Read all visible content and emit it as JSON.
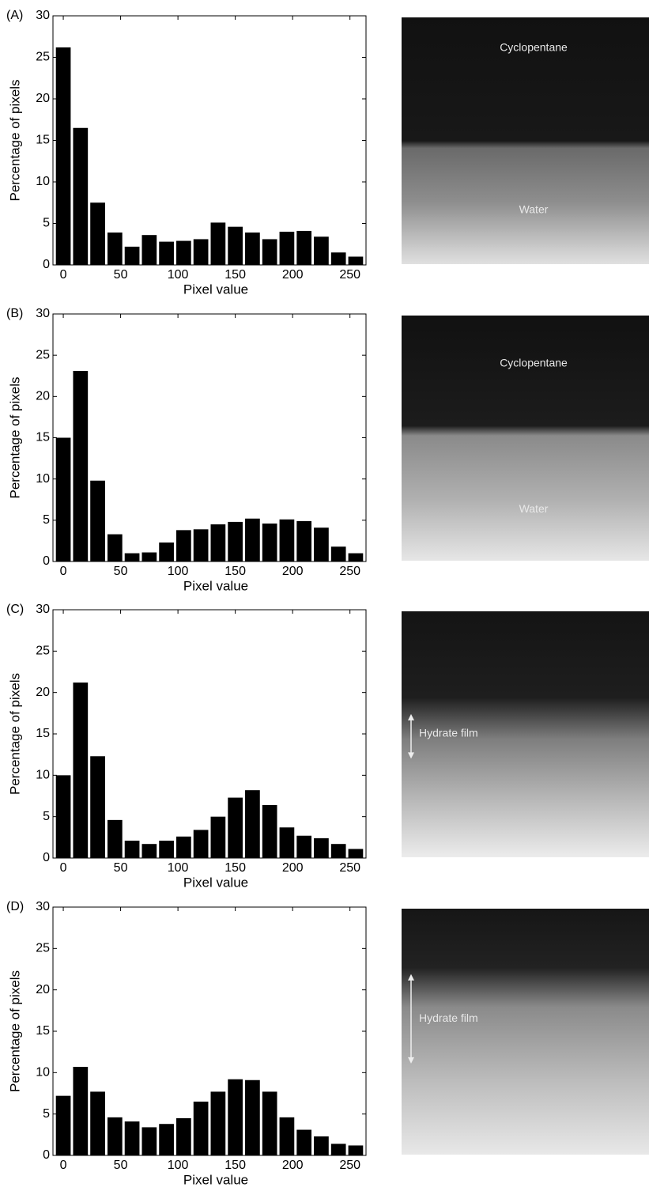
{
  "chart_data": [
    {
      "type": "bar",
      "panel_label": "(A)",
      "xlabel": "Pixel value",
      "ylabel": "Percentage of pixels",
      "color": "#000000",
      "x": [
        0,
        15,
        30,
        45,
        60,
        75,
        90,
        105,
        120,
        135,
        150,
        165,
        180,
        195,
        210,
        225,
        240,
        255
      ],
      "values": [
        26.2,
        16.5,
        7.5,
        3.9,
        2.2,
        3.6,
        2.8,
        2.9,
        3.1,
        5.1,
        4.6,
        3.9,
        3.1,
        4.0,
        4.1,
        3.4,
        1.5,
        1.0
      ],
      "xlim": [
        -9,
        264
      ],
      "ylim": [
        0,
        30
      ],
      "xticks": [
        0,
        50,
        100,
        150,
        200,
        250
      ],
      "yticks": [
        0,
        5,
        10,
        15,
        20,
        25,
        30
      ]
    },
    {
      "type": "bar",
      "panel_label": "(B)",
      "xlabel": "Pixel value",
      "ylabel": "Percentage of pixels",
      "color": "#000000",
      "x": [
        0,
        15,
        30,
        45,
        60,
        75,
        90,
        105,
        120,
        135,
        150,
        165,
        180,
        195,
        210,
        225,
        240,
        255
      ],
      "values": [
        15.0,
        23.1,
        9.8,
        3.3,
        1.0,
        1.1,
        2.3,
        3.8,
        3.9,
        4.5,
        4.8,
        5.2,
        4.6,
        5.1,
        4.9,
        4.1,
        1.8,
        1.0
      ],
      "xlim": [
        -9,
        264
      ],
      "ylim": [
        0,
        30
      ],
      "xticks": [
        0,
        50,
        100,
        150,
        200,
        250
      ],
      "yticks": [
        0,
        5,
        10,
        15,
        20,
        25,
        30
      ]
    },
    {
      "type": "bar",
      "panel_label": "(C)",
      "xlabel": "Pixel value",
      "ylabel": "Percentage of pixels",
      "color": "#000000",
      "x": [
        0,
        15,
        30,
        45,
        60,
        75,
        90,
        105,
        120,
        135,
        150,
        165,
        180,
        195,
        210,
        225,
        240,
        255
      ],
      "values": [
        10.0,
        21.2,
        12.3,
        4.6,
        2.1,
        1.7,
        2.1,
        2.6,
        3.4,
        5.0,
        7.3,
        8.2,
        6.4,
        3.7,
        2.7,
        2.4,
        1.7,
        1.1
      ],
      "xlim": [
        -9,
        264
      ],
      "ylim": [
        0,
        30
      ],
      "xticks": [
        0,
        50,
        100,
        150,
        200,
        250
      ],
      "yticks": [
        0,
        5,
        10,
        15,
        20,
        25,
        30
      ]
    },
    {
      "type": "bar",
      "panel_label": "(D)",
      "xlabel": "Pixel value",
      "ylabel": "Percentage of pixels",
      "color": "#000000",
      "x": [
        0,
        15,
        30,
        45,
        60,
        75,
        90,
        105,
        120,
        135,
        150,
        165,
        180,
        195,
        210,
        225,
        240,
        255
      ],
      "values": [
        7.2,
        10.7,
        7.7,
        4.6,
        4.1,
        3.4,
        3.8,
        4.5,
        6.5,
        7.7,
        9.2,
        9.1,
        7.7,
        4.6,
        3.1,
        2.3,
        1.4,
        1.2
      ],
      "xlim": [
        -9,
        264
      ],
      "ylim": [
        0,
        30
      ],
      "xticks": [
        0,
        50,
        100,
        150,
        200,
        250
      ],
      "yticks": [
        0,
        5,
        10,
        15,
        20,
        25,
        30
      ]
    }
  ],
  "images": [
    {
      "labels": [
        "Cyclopentane",
        "Water"
      ]
    },
    {
      "labels": [
        "Cyclopentane",
        "Water"
      ]
    },
    {
      "labels": [
        "Hydrate film"
      ]
    },
    {
      "labels": [
        "Hydrate film"
      ]
    }
  ]
}
